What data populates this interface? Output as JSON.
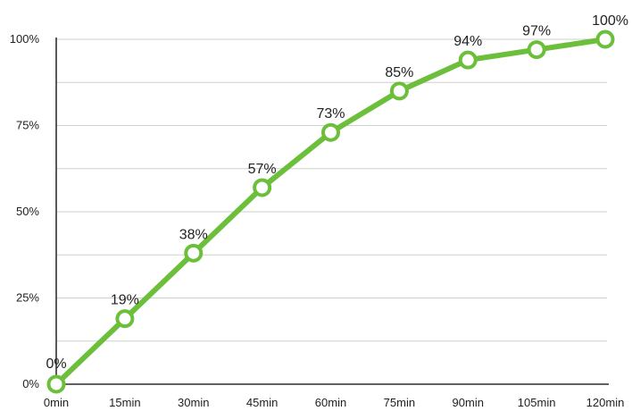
{
  "chart_data": {
    "type": "line",
    "title": "",
    "xlabel": "",
    "ylabel": "",
    "categories": [
      "0min",
      "15min",
      "30min",
      "45min",
      "60min",
      "75min",
      "90min",
      "105min",
      "120min"
    ],
    "values": [
      0,
      19,
      38,
      57,
      73,
      85,
      94,
      97,
      100
    ],
    "data_labels": [
      "0%",
      "19%",
      "38%",
      "57%",
      "73%",
      "85%",
      "94%",
      "97%",
      "100%"
    ],
    "y_ticks": [
      {
        "value": 0,
        "label": "0%"
      },
      {
        "value": 25,
        "label": "25%"
      },
      {
        "value": 50,
        "label": "50%"
      },
      {
        "value": 75,
        "label": "75%"
      },
      {
        "value": 100,
        "label": "100%"
      }
    ],
    "ylim": [
      0,
      100
    ],
    "grid": true,
    "grid_step": 12.5,
    "line_color": "#6cbf3a",
    "marker_fill": "#ffffff"
  }
}
